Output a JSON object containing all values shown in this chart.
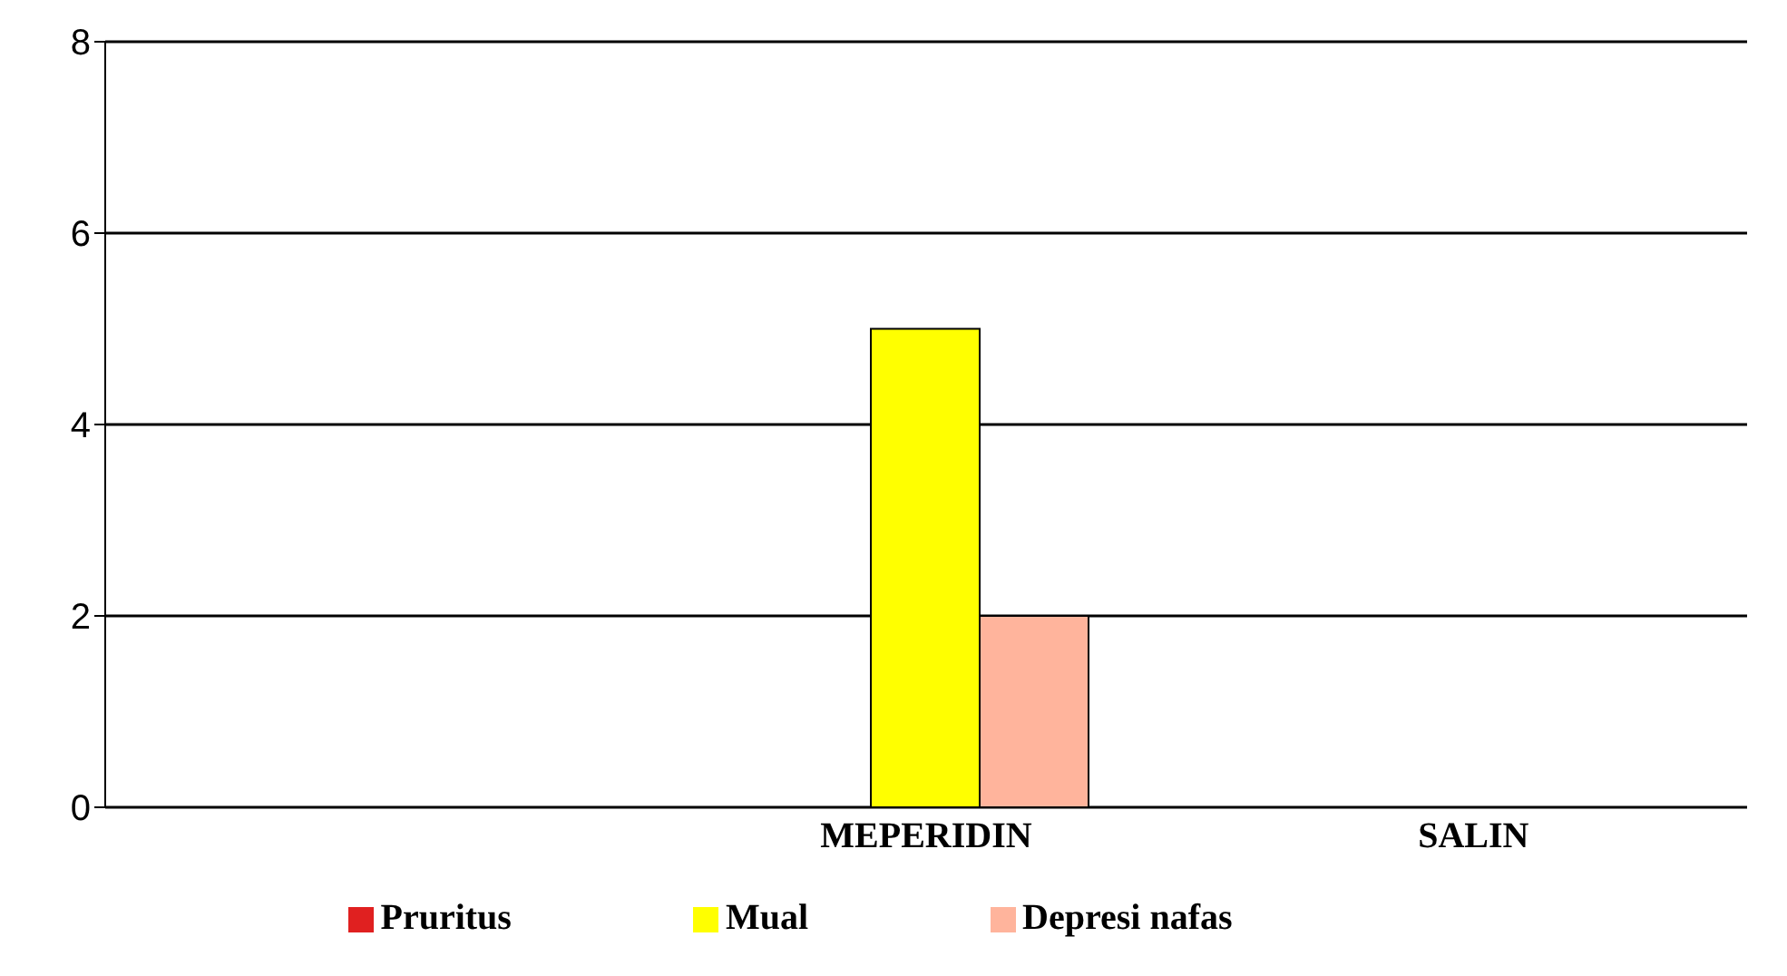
{
  "chart_data": {
    "type": "bar",
    "categories": [
      null,
      "MEPERIDIN",
      "SALIN"
    ],
    "series": [
      {
        "name": "Pruritus",
        "color": "#e02020",
        "values": [
          null,
          0,
          0
        ]
      },
      {
        "name": "Mual",
        "color": "#ffff00",
        "values": [
          null,
          5,
          0
        ]
      },
      {
        "name": "Depresi nafas",
        "color": "#ffb49c",
        "values": [
          null,
          2,
          0
        ]
      }
    ],
    "ylim": [
      0,
      8
    ],
    "yticks": [
      0,
      2,
      4,
      6,
      8
    ],
    "grid": "y",
    "legend": "bottom"
  }
}
